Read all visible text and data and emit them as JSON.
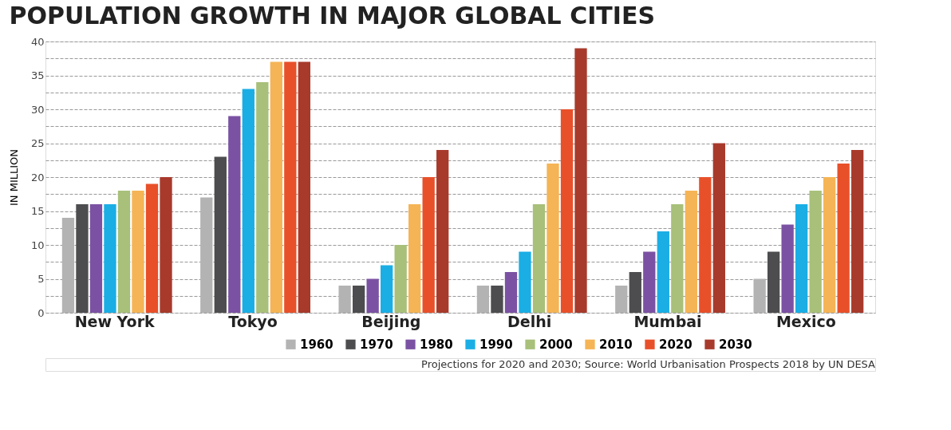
{
  "chart_data": {
    "type": "bar",
    "title": "POPULATION GROWTH IN MAJOR GLOBAL CITIES",
    "ylabel": "IN MILLION",
    "categories": [
      "New York",
      "Tokyo",
      "Beijing",
      "Delhi",
      "Mumbai",
      "Mexico"
    ],
    "series": [
      {
        "name": "1960",
        "color": "#b3b3b3",
        "values": [
          14,
          17,
          4,
          4,
          4,
          5
        ]
      },
      {
        "name": "1970",
        "color": "#4d4d4f",
        "values": [
          16,
          23,
          4,
          4,
          6,
          9
        ]
      },
      {
        "name": "1980",
        "color": "#7b52a3",
        "values": [
          16,
          29,
          5,
          6,
          9,
          13
        ]
      },
      {
        "name": "1990",
        "color": "#1aaee5",
        "values": [
          16,
          33,
          7,
          9,
          12,
          16
        ]
      },
      {
        "name": "2000",
        "color": "#a8c07a",
        "values": [
          18,
          34,
          10,
          16,
          16,
          18
        ]
      },
      {
        "name": "2010",
        "color": "#f5b455",
        "values": [
          18,
          37,
          16,
          22,
          18,
          20
        ]
      },
      {
        "name": "2020",
        "color": "#e8502a",
        "values": [
          19,
          37,
          20,
          30,
          20,
          22
        ]
      },
      {
        "name": "2030",
        "color": "#a83a2c",
        "values": [
          20,
          37,
          24,
          39,
          25,
          24
        ]
      }
    ],
    "ylim": [
      0,
      40
    ],
    "yticks": [
      0,
      {
        "value": 2.5,
        "label": null
      },
      5,
      {
        "value": 7.5,
        "label": null
      },
      10,
      {
        "value": 12.5,
        "label": null
      },
      15,
      {
        "value": 17.5,
        "label": null
      },
      20,
      {
        "value": 22.5,
        "label": null
      },
      25,
      {
        "value": 27.5,
        "label": null
      },
      30,
      {
        "value": 32.5,
        "label": null
      },
      35,
      {
        "value": 37.5,
        "label": null
      },
      40
    ],
    "grid": "y",
    "legend": "bottom right",
    "annotations": [
      "Projections for 2020 and 2030; Source: World Urbanisation Prospects 2018 by UN DESA"
    ]
  }
}
